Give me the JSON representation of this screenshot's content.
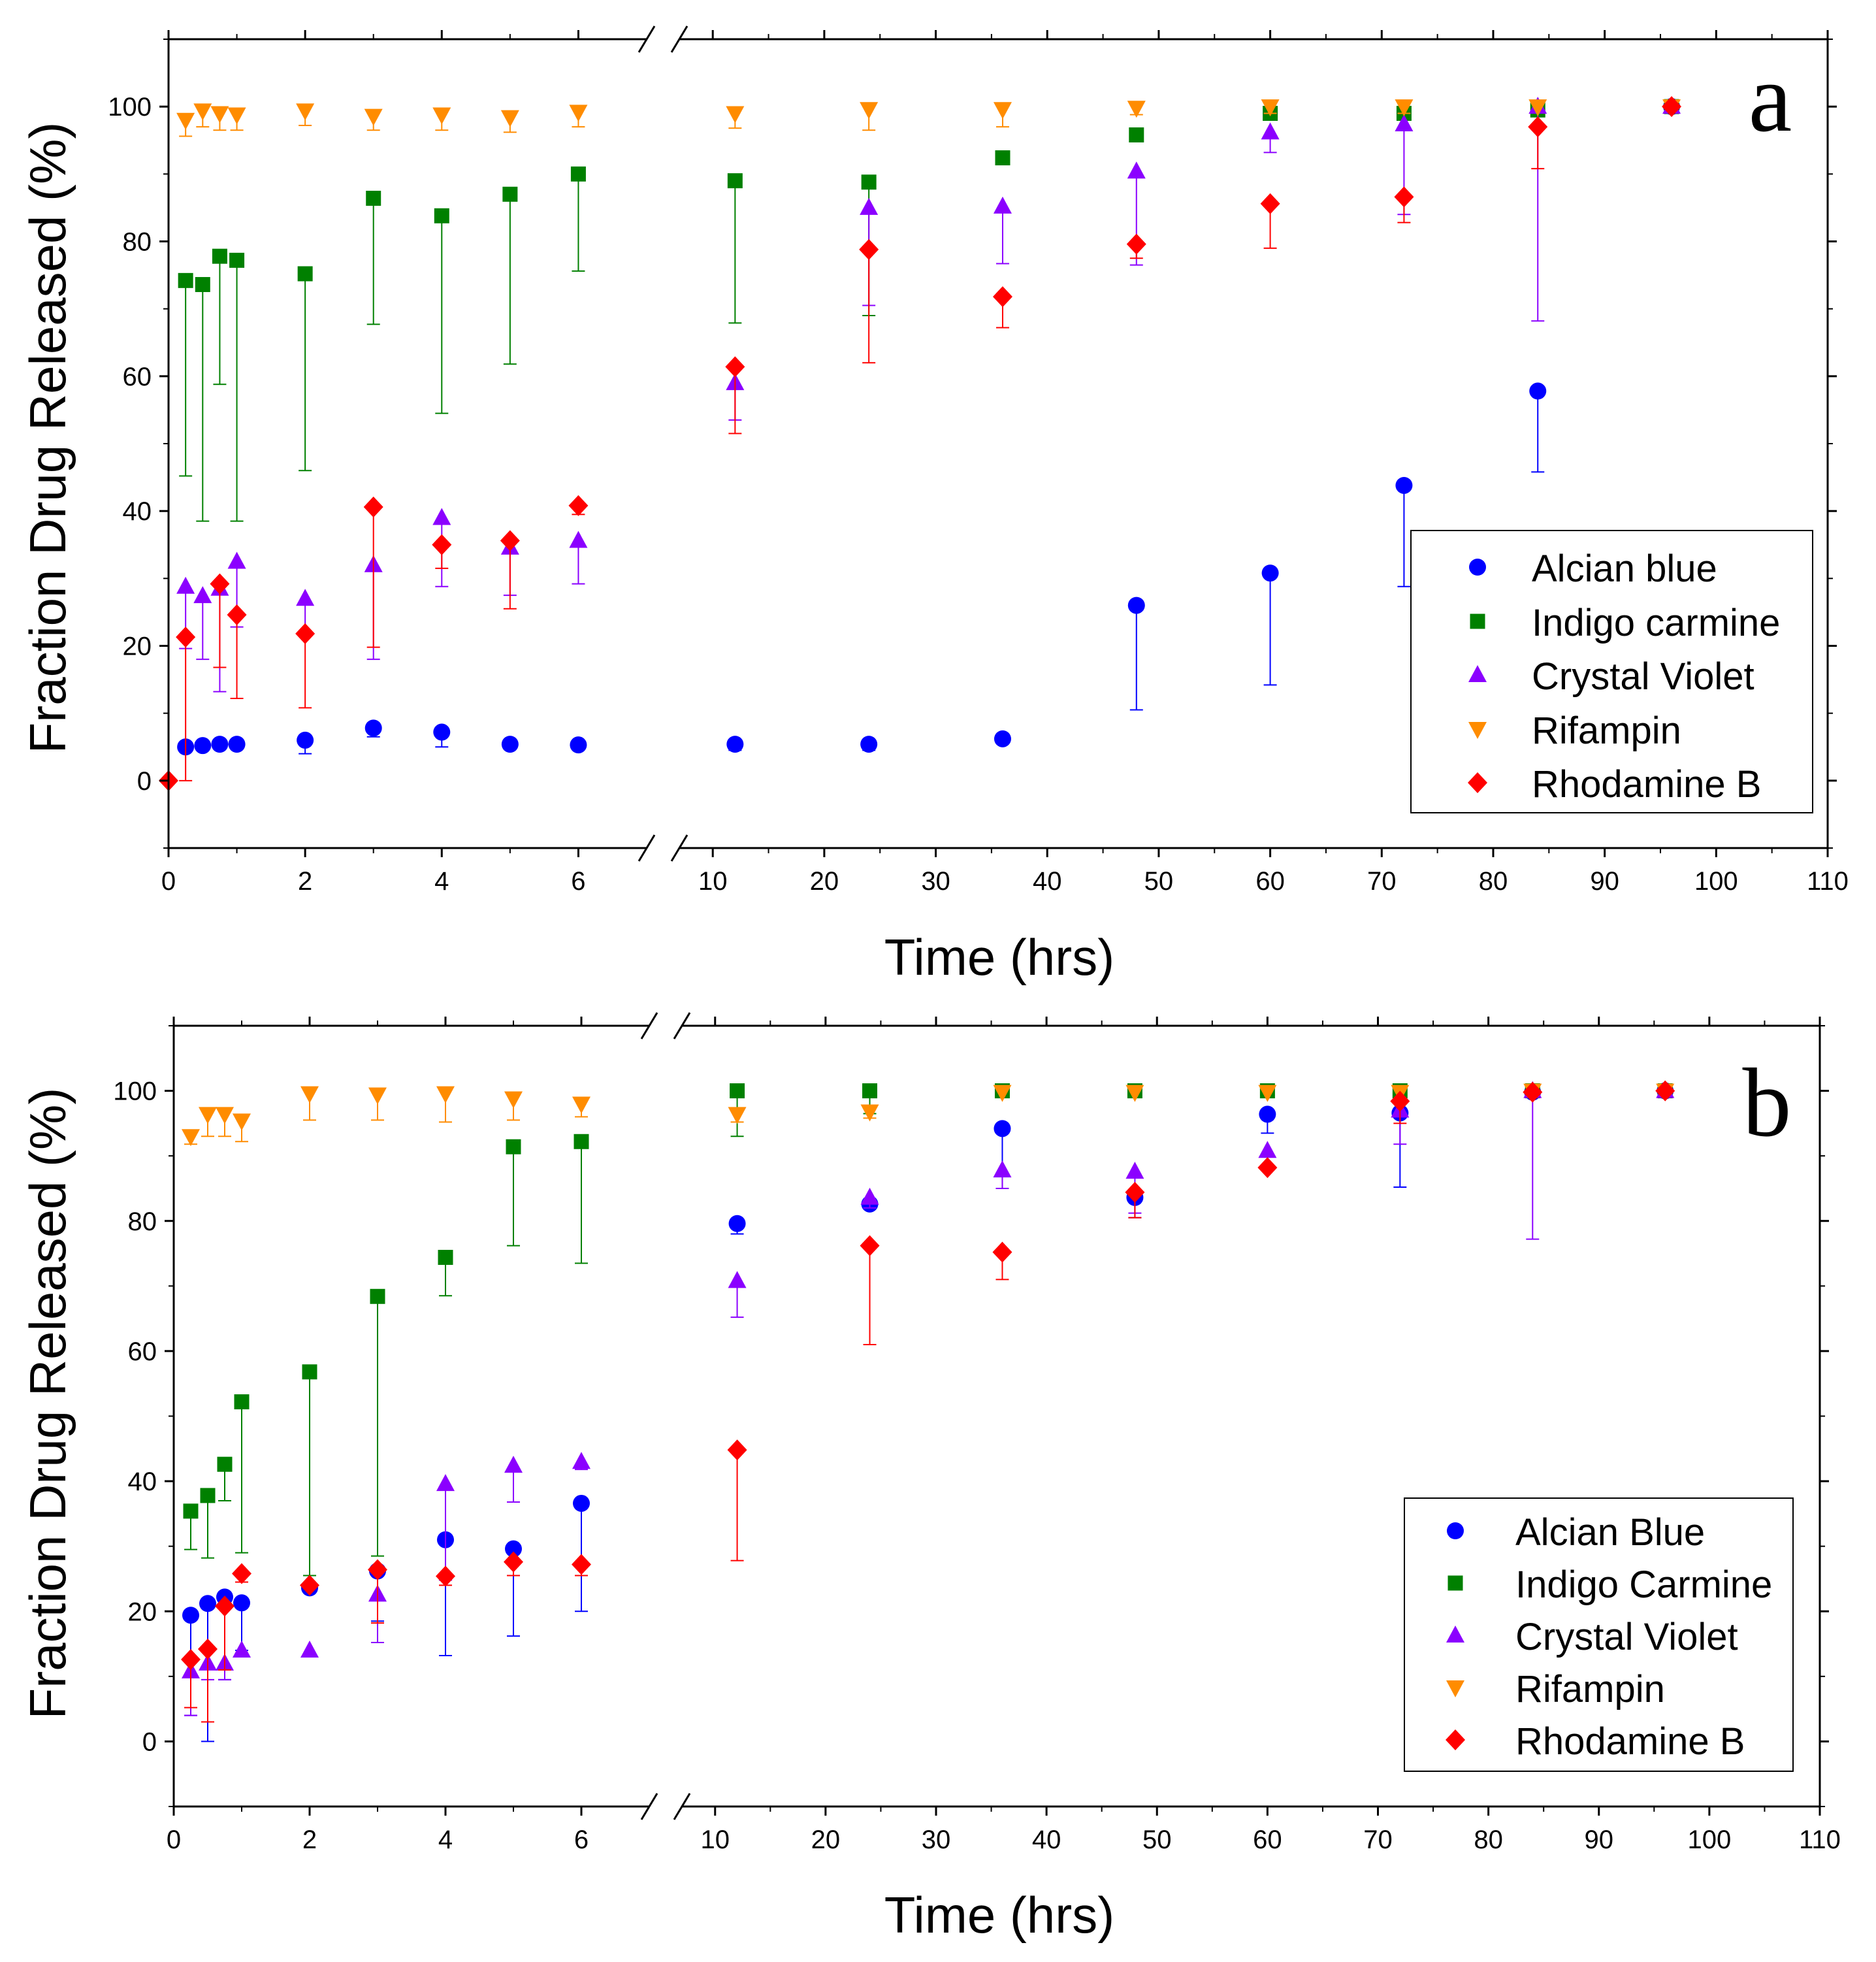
{
  "chart_data": [
    {
      "type": "scatter",
      "panel_label": "a",
      "xlabel": "Time (hrs)",
      "ylabel": "Fraction Drug Released (%)",
      "ylim": [
        -10,
        110
      ],
      "yticks": [
        0,
        20,
        40,
        60,
        80,
        100
      ],
      "xlim_left": [
        0,
        7
      ],
      "xlim_right": [
        7,
        110
      ],
      "xticks_left": [
        0,
        2,
        4,
        6
      ],
      "xticks_right": [
        10,
        20,
        30,
        40,
        50,
        60,
        70,
        80,
        90,
        100,
        110
      ],
      "axis_break": "between 7 and 7 (left segment 0–7, right segment 7–110)",
      "legend_position": "bottom-right",
      "series": [
        {
          "name": "Alcian blue",
          "marker": "circle",
          "color": "#0000ff",
          "x": [
            0.25,
            0.5,
            0.75,
            1,
            2,
            3,
            4,
            5,
            6,
            12,
            24,
            36,
            48,
            60,
            72,
            84,
            96
          ],
          "values": [
            5,
            5.2,
            5.4,
            5.4,
            6,
            7.8,
            7.2,
            5.4,
            5.3,
            5.4,
            5.4,
            6.2,
            26,
            30.8,
            43.8,
            57.8,
            100
          ],
          "err_low": [
            5,
            5.2,
            5.4,
            5.4,
            4,
            6.5,
            5,
            5.4,
            5.3,
            4.5,
            4.5,
            5.5,
            10.5,
            14.2,
            28.8,
            45.8,
            99
          ],
          "err_high": [
            5,
            5.2,
            5.4,
            5.4,
            6.5,
            8,
            7.5,
            5.4,
            5.3,
            5.4,
            5.4,
            6.5,
            26,
            30.8,
            43.8,
            57.8,
            100
          ]
        },
        {
          "name": "Indigo carmine",
          "marker": "square",
          "color": "#008000",
          "x": [
            0.25,
            0.5,
            0.75,
            1,
            2,
            3,
            4,
            5,
            6,
            12,
            24,
            36,
            48,
            60,
            72,
            84,
            96
          ],
          "values": [
            74.2,
            73.6,
            77.8,
            77.2,
            75.2,
            86.4,
            83.8,
            87,
            90,
            89,
            88.8,
            92.4,
            95.8,
            99,
            99,
            99.5,
            100
          ],
          "err_low": [
            45.2,
            38.5,
            58.8,
            38.5,
            46,
            67.7,
            54.5,
            61.8,
            75.6,
            67.9,
            69,
            92.4,
            95.8,
            99,
            99,
            99.5,
            100
          ],
          "err_high": [
            74.2,
            73.6,
            77.8,
            77.2,
            75.2,
            86.4,
            83.8,
            87,
            90,
            89,
            88.8,
            92.4,
            95.8,
            99,
            99,
            99.5,
            100
          ]
        },
        {
          "name": "Crystal Violet",
          "marker": "triangle-up",
          "color": "#8b00ff",
          "x": [
            0.25,
            0.5,
            0.75,
            1,
            2,
            3,
            4,
            5,
            6,
            12,
            24,
            36,
            48,
            60,
            72,
            84,
            96
          ],
          "values": [
            28.8,
            27.4,
            28.5,
            32.5,
            27,
            32,
            39,
            34.6,
            35.6,
            59,
            85,
            85.2,
            90.4,
            96.2,
            97.4,
            100,
            100
          ],
          "err_low": [
            19.6,
            18,
            13.2,
            22.8,
            22,
            18,
            28.8,
            27.5,
            29.2,
            53.5,
            70.5,
            76.7,
            76.5,
            93.2,
            84,
            68.2,
            99.5
          ],
          "err_high": [
            28.8,
            27.4,
            28.5,
            32.5,
            27,
            32,
            39,
            34.6,
            35.6,
            59,
            85,
            85.2,
            90.4,
            96.2,
            97.4,
            100,
            100
          ]
        },
        {
          "name": "Rifampin",
          "marker": "triangle-down",
          "color": "#ff8c00",
          "x": [
            0.25,
            0.5,
            0.75,
            1,
            2,
            3,
            4,
            5,
            6,
            12,
            24,
            36,
            48,
            60,
            72,
            84,
            96
          ],
          "values": [
            98,
            99.4,
            99,
            98.8,
            99.4,
            98.6,
            98.8,
            98.4,
            99.2,
            99,
            99.6,
            99.6,
            99.8,
            100,
            100,
            100,
            100
          ],
          "err_low": [
            95.6,
            97,
            96.5,
            96.5,
            97.2,
            96.5,
            96.5,
            96.2,
            97,
            96.8,
            96.5,
            97,
            98.8,
            99,
            99,
            99.5,
            100
          ],
          "err_high": [
            98,
            99.4,
            99,
            98.8,
            99.4,
            98.6,
            98.8,
            98.4,
            99.2,
            99,
            99.6,
            99.6,
            99.8,
            100,
            100,
            100,
            100
          ]
        },
        {
          "name": "Rhodamine B",
          "marker": "diamond",
          "color": "#ff0000",
          "x": [
            0,
            0.25,
            0.75,
            1,
            2,
            3,
            4,
            5,
            6,
            12,
            24,
            36,
            48,
            60,
            72,
            84,
            96
          ],
          "values": [
            0,
            21.3,
            29.2,
            24.6,
            21.8,
            40.6,
            35,
            35.6,
            40.8,
            61.4,
            78.8,
            71.8,
            79.6,
            85.6,
            86.6,
            97,
            100
          ],
          "err_low": [
            0,
            0,
            16.8,
            12.2,
            10.8,
            19.8,
            31.5,
            25.5,
            39.5,
            51.5,
            62,
            67.2,
            77.5,
            79,
            82.8,
            90.8,
            99.5
          ],
          "err_high": [
            0,
            21.3,
            29.2,
            24.6,
            21.8,
            40.6,
            35,
            35.6,
            40.8,
            61.4,
            78.8,
            71.8,
            79.6,
            85.6,
            86.6,
            97,
            100
          ]
        }
      ]
    },
    {
      "type": "scatter",
      "panel_label": "b",
      "xlabel": "Time (hrs)",
      "ylabel": "Fraction Drug Released (%)",
      "ylim": [
        -10,
        110
      ],
      "yticks": [
        0,
        20,
        40,
        60,
        80,
        100
      ],
      "xlim_left": [
        0,
        7
      ],
      "xlim_right": [
        7,
        110
      ],
      "xticks_left": [
        0,
        2,
        4,
        6
      ],
      "xticks_right": [
        10,
        20,
        30,
        40,
        50,
        60,
        70,
        80,
        90,
        100,
        110
      ],
      "axis_break": "between 7 and 7 (left segment 0–7, right segment 7–110)",
      "legend_position": "bottom-right",
      "series": [
        {
          "name": "Alcian Blue",
          "marker": "circle",
          "color": "#0000ff",
          "x": [
            0.25,
            0.5,
            0.75,
            1,
            2,
            3,
            4,
            5,
            6,
            12,
            24,
            36,
            48,
            60,
            72,
            84,
            96
          ],
          "values": [
            19.4,
            21.2,
            22.2,
            21.3,
            23.6,
            26.2,
            31,
            29.6,
            36.6,
            79.6,
            82.6,
            94.2,
            83.6,
            96.4,
            96.6,
            99.8,
            100
          ],
          "err_low": [
            4,
            0,
            9.5,
            14,
            23.6,
            18.5,
            13.2,
            16.2,
            20,
            78,
            82.6,
            85,
            80.5,
            93.5,
            85.2,
            99.5,
            99.5
          ],
          "err_high": [
            19.4,
            21.2,
            22.2,
            21.3,
            23.6,
            26.2,
            31,
            29.6,
            36.6,
            79.6,
            82.6,
            94.2,
            83.6,
            96.4,
            96.6,
            99.8,
            100
          ]
        },
        {
          "name": "Indigo Carmine",
          "marker": "square",
          "color": "#008000",
          "x": [
            0.25,
            0.5,
            0.75,
            1,
            2,
            3,
            4,
            5,
            6,
            12,
            24,
            36,
            48,
            60,
            72,
            84,
            96
          ],
          "values": [
            35.4,
            37.8,
            42.6,
            52.2,
            56.8,
            68.4,
            74.4,
            91.4,
            92.2,
            100,
            100,
            100,
            100,
            100,
            100,
            100,
            100
          ],
          "err_low": [
            29.5,
            28.2,
            37,
            29,
            25.5,
            28.5,
            68.5,
            76.2,
            73.5,
            93,
            96.5,
            99.5,
            99.5,
            99.5,
            99.5,
            99.5,
            100
          ],
          "err_high": [
            35.4,
            37.8,
            42.6,
            52.2,
            56.8,
            68.4,
            74.4,
            91.4,
            92.2,
            100,
            100,
            100,
            100,
            100,
            100,
            100,
            100
          ]
        },
        {
          "name": "Crystal Violet",
          "marker": "triangle-up",
          "color": "#8b00ff",
          "x": [
            0.25,
            0.5,
            0.75,
            1,
            2,
            3,
            4,
            5,
            6,
            12,
            24,
            36,
            48,
            60,
            72,
            84,
            96
          ],
          "values": [
            10.8,
            12,
            12,
            14,
            14,
            22.6,
            39.6,
            42.4,
            43,
            70.8,
            83.6,
            87.8,
            87.6,
            90.8,
            97,
            100,
            100
          ],
          "err_low": [
            4,
            9.5,
            9.5,
            13,
            14,
            15.2,
            24.8,
            36.8,
            41.8,
            65.2,
            82,
            85,
            81.2,
            88.5,
            91.8,
            77.2,
            99.5
          ],
          "err_high": [
            10.8,
            12,
            12,
            14,
            14,
            22.6,
            39.6,
            42.4,
            43,
            70.8,
            83.6,
            87.8,
            87.6,
            90.8,
            97,
            100,
            100
          ]
        },
        {
          "name": "Rifampin",
          "marker": "triangle-down",
          "color": "#ff8c00",
          "x": [
            0.25,
            0.5,
            0.75,
            1,
            2,
            3,
            4,
            5,
            6,
            12,
            24,
            36,
            48,
            60,
            72,
            84,
            96
          ],
          "values": [
            93,
            96.4,
            96.4,
            95.4,
            99.6,
            99.4,
            99.6,
            98.8,
            98,
            96.4,
            96.8,
            99.8,
            99.8,
            99.8,
            99.8,
            100,
            100
          ],
          "err_low": [
            91.8,
            93,
            93,
            92.2,
            95.5,
            95.5,
            95.2,
            95.5,
            96,
            95.2,
            95.8,
            99.5,
            99.5,
            99.5,
            99.5,
            99.5,
            100
          ],
          "err_high": [
            93,
            96.4,
            96.4,
            95.4,
            99.6,
            99.4,
            99.6,
            98.8,
            98,
            96.4,
            96.8,
            99.8,
            99.8,
            99.8,
            99.8,
            100,
            100
          ]
        },
        {
          "name": "Rhodamine B",
          "marker": "diamond",
          "color": "#ff0000",
          "x": [
            0.25,
            0.5,
            0.75,
            1,
            2,
            3,
            4,
            5,
            6,
            12,
            24,
            36,
            48,
            60,
            72,
            84,
            96
          ],
          "values": [
            12.6,
            14.2,
            20.8,
            25.8,
            24,
            26.4,
            25.4,
            27.6,
            27.2,
            44.8,
            76.2,
            75.2,
            84.4,
            88.2,
            98.4,
            99.8,
            100
          ],
          "err_low": [
            5.2,
            3,
            11,
            24.5,
            24,
            18.2,
            24,
            25.5,
            25.5,
            27.8,
            61,
            71,
            80.5,
            87.8,
            95,
            99.5,
            99.5
          ],
          "err_high": [
            12.6,
            14.2,
            20.8,
            25.8,
            24,
            26.4,
            25.4,
            27.6,
            27.2,
            44.8,
            76.2,
            75.2,
            84.4,
            88.2,
            98.4,
            99.8,
            100
          ]
        }
      ]
    }
  ]
}
